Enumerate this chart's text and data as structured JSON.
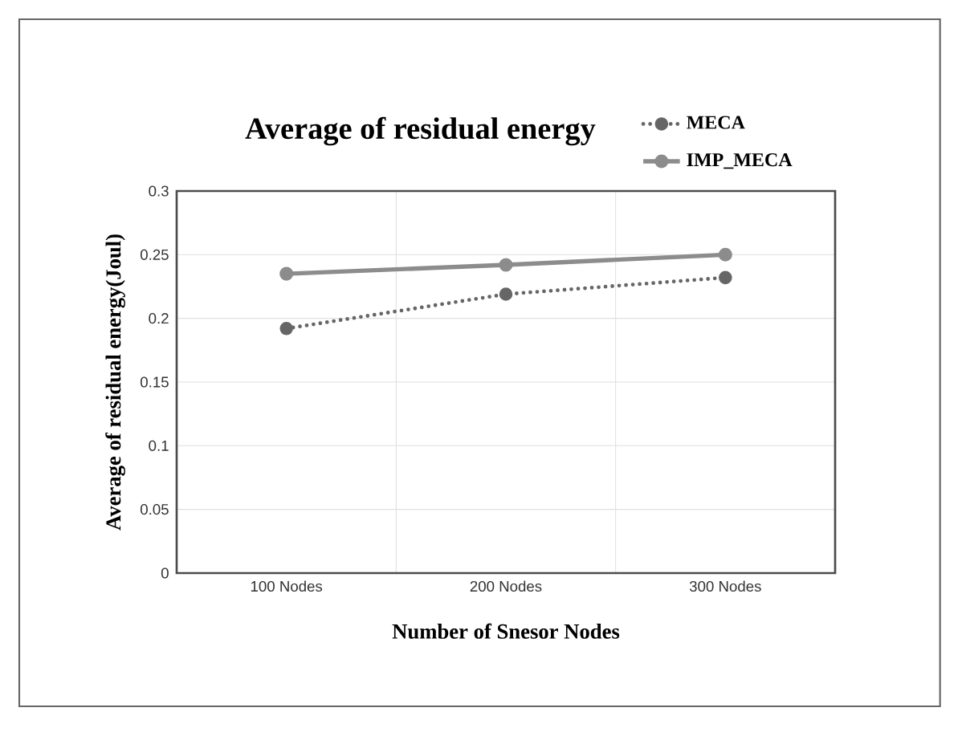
{
  "chart_data": {
    "type": "line",
    "title": "Average of residual energy",
    "xlabel": "Number of  Snesor Nodes",
    "ylabel": "Average of residual energy(Joul)",
    "categories": [
      "100 Nodes",
      "200 Nodes",
      "300 Nodes"
    ],
    "series": [
      {
        "name": "MECA",
        "color": "#666666",
        "values": [
          0.192,
          0.219,
          0.232
        ],
        "line_style": "dotted"
      },
      {
        "name": "IMP_MECA",
        "color": "#8c8c8c",
        "values": [
          0.235,
          0.242,
          0.25
        ],
        "line_style": "solid"
      }
    ],
    "ylim": [
      0,
      0.3
    ],
    "yticks": [
      0,
      0.05,
      0.1,
      0.15,
      0.2,
      0.25,
      0.3
    ],
    "grid": true,
    "legend": "top right",
    "marker": "circle"
  }
}
